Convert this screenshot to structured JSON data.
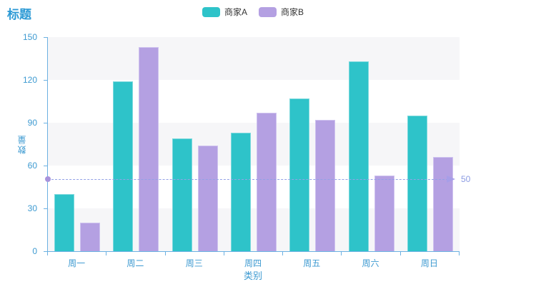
{
  "title": {
    "text": "标题",
    "color": "#2d9ad5"
  },
  "legend": {
    "items": [
      {
        "label": "商家A",
        "color": "#2ec3c9"
      },
      {
        "label": "商家B",
        "color": "#b4a0e2"
      }
    ],
    "text_color": "#333333"
  },
  "axis": {
    "line_color": "#6cb1e2",
    "tick_label_color": "#3d9ad1",
    "name_color": "#3d9ad1"
  },
  "chart_data": {
    "type": "bar",
    "title": "标题",
    "categories": [
      "周一",
      "周二",
      "周三",
      "周四",
      "周五",
      "周六",
      "周日"
    ],
    "series": [
      {
        "name": "商家A",
        "color": "#2ec3c9",
        "border_color": "#7cd9dd",
        "values": [
          40,
          119,
          79,
          83,
          107,
          133,
          95
        ]
      },
      {
        "name": "商家B",
        "color": "#b4a0e2",
        "border_color": "#cfc3ef",
        "values": [
          20,
          143,
          74,
          97,
          92,
          53,
          66
        ]
      }
    ],
    "xlabel": "类别",
    "ylabel": "数量",
    "ylim": [
      0,
      150
    ],
    "yticks": [
      0,
      30,
      60,
      90,
      120,
      150
    ],
    "grid": false,
    "legend_position": "top-center",
    "split_area_colors": [
      "#f6f6f8",
      "#ffffff"
    ],
    "markline": {
      "value": 50,
      "label": "50",
      "line_color": "#92a1e6",
      "dot_color": "#a893dc",
      "arrow_color": "#a79ee8",
      "label_color": "#8b9be3"
    }
  }
}
